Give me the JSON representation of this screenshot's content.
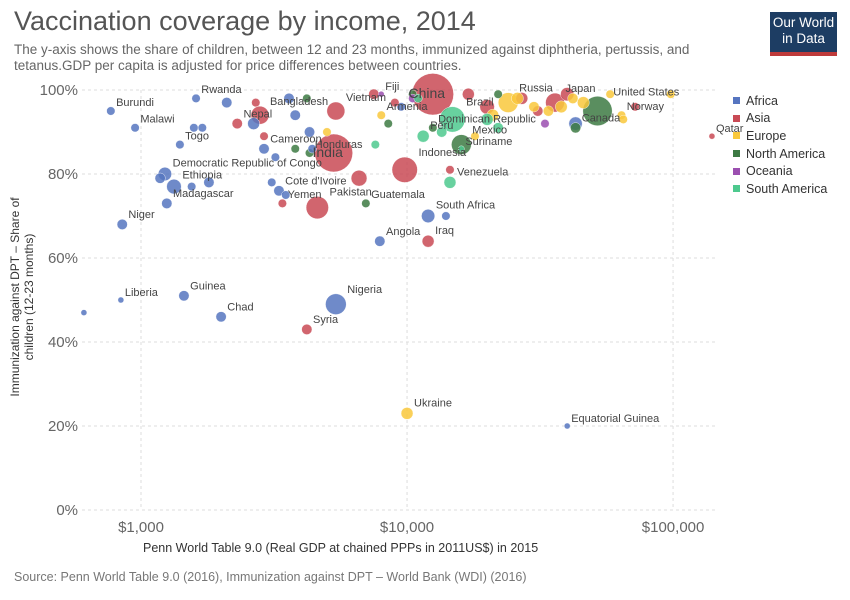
{
  "header": {
    "title": "Vaccination coverage by income, 2014",
    "subtitle": "The y-axis shows the share of children, between 12 and 23 months, immunized against diphtheria, pertussis, and tetanus.GDP per capita is adjusted for price differences between countries.",
    "logo_line1": "Our World",
    "logo_line2": "in Data"
  },
  "footer": {
    "source": "Source: Penn World Table 9.0 (2016), Immunization against DPT – World Bank (WDI) (2016)"
  },
  "colors": {
    "Africa": "#5675c0",
    "Asia": "#c94a55",
    "Europe": "#f9c83c",
    "North America": "#3d7a43",
    "Oceania": "#9b4fb0",
    "South America": "#4dc98e"
  },
  "chart_data": {
    "type": "scatter",
    "title": "Vaccination coverage by income, 2014",
    "xlabel": "Penn World Table 9.0 (Real GDP at chained PPPs in 2011US$) in 2015",
    "ylabel": "Immunization against DPT – Share of children (12-23 months)",
    "x_scale": "log",
    "xlim": [
      600,
      145000
    ],
    "ylim": [
      0,
      100
    ],
    "x_ticks": [
      {
        "value": 1000,
        "label": "$1,000"
      },
      {
        "value": 10000,
        "label": "$10,000"
      },
      {
        "value": 100000,
        "label": "$100,000"
      }
    ],
    "y_ticks": [
      {
        "value": 0,
        "label": "0%"
      },
      {
        "value": 20,
        "label": "20%"
      },
      {
        "value": 40,
        "label": "40%"
      },
      {
        "value": 60,
        "label": "60%"
      },
      {
        "value": 80,
        "label": "80%"
      },
      {
        "value": 100,
        "label": "100%"
      }
    ],
    "grid": true,
    "legend_position": "right",
    "legend": [
      "Africa",
      "Asia",
      "Europe",
      "North America",
      "Oceania",
      "South America"
    ],
    "points": [
      {
        "name": "Burundi",
        "region": "Africa",
        "x": 770,
        "y": 95,
        "size": 2
      },
      {
        "name": "Malawi",
        "region": "Africa",
        "x": 950,
        "y": 91,
        "size": 2
      },
      {
        "name": "Rwanda",
        "region": "Africa",
        "x": 1610,
        "y": 98,
        "size": 2
      },
      {
        "name": "Togo",
        "region": "Africa",
        "x": 1400,
        "y": 87,
        "size": 2
      },
      {
        "name": "Democratic Republic of Congo",
        "region": "Africa",
        "x": 1230,
        "y": 80,
        "size": 5
      },
      {
        "name": "Ethiopia",
        "region": "Africa",
        "x": 1330,
        "y": 77,
        "size": 6
      },
      {
        "name": "Madagascar",
        "region": "Africa",
        "x": 1250,
        "y": 73,
        "size": 3
      },
      {
        "name": "Niger",
        "region": "Africa",
        "x": 850,
        "y": 68,
        "size": 3
      },
      {
        "name": "Liberia",
        "region": "Africa",
        "x": 840,
        "y": 50,
        "size": 1
      },
      {
        "name": "Guinea",
        "region": "Africa",
        "x": 1450,
        "y": 51,
        "size": 3
      },
      {
        "name": "Chad",
        "region": "Africa",
        "x": 2000,
        "y": 46,
        "size": 3
      },
      {
        "name": "Nigeria",
        "region": "Africa",
        "x": 5400,
        "y": 49,
        "size": 12
      },
      {
        "name": "Cameroon",
        "region": "Africa",
        "x": 2900,
        "y": 86,
        "size": 3
      },
      {
        "name": "Cote d'Ivoire",
        "region": "Africa",
        "x": 3300,
        "y": 76,
        "size": 3
      },
      {
        "name": "Angola",
        "region": "Africa",
        "x": 7900,
        "y": 64,
        "size": 3
      },
      {
        "name": "South Africa",
        "region": "Africa",
        "x": 12000,
        "y": 70,
        "size": 5
      },
      {
        "name": "Equatorial Guinea",
        "region": "Africa",
        "x": 40000,
        "y": 20,
        "size": 1
      },
      {
        "name": "Bangladesh",
        "region": "Asia",
        "x": 2800,
        "y": 94,
        "size": 9
      },
      {
        "name": "Nepal",
        "region": "Asia",
        "x": 2300,
        "y": 92,
        "size": 3
      },
      {
        "name": "India",
        "region": "Asia",
        "x": 5300,
        "y": 85,
        "size": 40
      },
      {
        "name": "Pakistan",
        "region": "Asia",
        "x": 4600,
        "y": 72,
        "size": 14
      },
      {
        "name": "Yemen",
        "region": "Asia",
        "x": 3400,
        "y": 73,
        "size": 2
      },
      {
        "name": "Vietnam",
        "region": "Asia",
        "x": 5400,
        "y": 95,
        "size": 9
      },
      {
        "name": "Indonesia",
        "region": "Asia",
        "x": 9800,
        "y": 81,
        "size": 18
      },
      {
        "name": "China",
        "region": "Asia",
        "x": 12500,
        "y": 99,
        "size": 48
      },
      {
        "name": "Iraq",
        "region": "Asia",
        "x": 12000,
        "y": 64,
        "size": 4
      },
      {
        "name": "Syria",
        "region": "Asia",
        "x": 4200,
        "y": 43,
        "size": 3
      },
      {
        "name": "Japan",
        "region": "Asia",
        "x": 36000,
        "y": 97,
        "size": 10
      },
      {
        "name": "Qatar",
        "region": "Asia",
        "x": 140000,
        "y": 89,
        "size": 1
      },
      {
        "name": "Russia",
        "region": "Europe",
        "x": 24000,
        "y": 97,
        "size": 11
      },
      {
        "name": "Ukraine",
        "region": "Europe",
        "x": 10000,
        "y": 23,
        "size": 4
      },
      {
        "name": "Norway",
        "region": "Europe",
        "x": 64000,
        "y": 94,
        "size": 2
      },
      {
        "name": "United States",
        "region": "North America",
        "x": 52000,
        "y": 95,
        "size": 24
      },
      {
        "name": "Canada",
        "region": "North America",
        "x": 43000,
        "y": 91,
        "size": 3
      },
      {
        "name": "Mexico",
        "region": "North America",
        "x": 16000,
        "y": 87,
        "size": 11
      },
      {
        "name": "Guatemala",
        "region": "North America",
        "x": 7000,
        "y": 73,
        "size": 2
      },
      {
        "name": "Honduras",
        "region": "North America",
        "x": 4300,
        "y": 85,
        "size": 2
      },
      {
        "name": "Dominican Republic",
        "region": "North America",
        "x": 12500,
        "y": 91,
        "size": 2
      },
      {
        "name": "Fiji",
        "region": "Oceania",
        "x": 8000,
        "y": 99,
        "size": 1
      },
      {
        "name": "Armenia",
        "region": "Europe",
        "x": 8000,
        "y": 94,
        "size": 2
      },
      {
        "name": "Peru",
        "region": "South America",
        "x": 11500,
        "y": 89,
        "size": 4
      },
      {
        "name": "Suriname",
        "region": "South America",
        "x": 16000,
        "y": 86,
        "size": 1
      },
      {
        "name": "Venezuela",
        "region": "South America",
        "x": 14500,
        "y": 78,
        "size": 4
      },
      {
        "name": "Brazil",
        "region": "South America",
        "x": 14800,
        "y": 93,
        "size": 18
      },
      {
        "region": "Africa",
        "x": 610,
        "y": 47,
        "size": 1
      },
      {
        "region": "Africa",
        "x": 1180,
        "y": 79,
        "size": 3
      },
      {
        "region": "Africa",
        "x": 1550,
        "y": 77,
        "size": 2
      },
      {
        "region": "Africa",
        "x": 1580,
        "y": 91,
        "size": 2
      },
      {
        "region": "Africa",
        "x": 1700,
        "y": 91,
        "size": 2
      },
      {
        "region": "Africa",
        "x": 1800,
        "y": 78,
        "size": 3
      },
      {
        "region": "Africa",
        "x": 2100,
        "y": 97,
        "size": 3
      },
      {
        "region": "Africa",
        "x": 2650,
        "y": 92,
        "size": 4
      },
      {
        "region": "Africa",
        "x": 3600,
        "y": 98,
        "size": 3
      },
      {
        "region": "Africa",
        "x": 3800,
        "y": 94,
        "size": 3
      },
      {
        "region": "Africa",
        "x": 4300,
        "y": 90,
        "size": 3
      },
      {
        "region": "Africa",
        "x": 4400,
        "y": 86,
        "size": 2
      },
      {
        "region": "Africa",
        "x": 3200,
        "y": 84,
        "size": 2
      },
      {
        "region": "Africa",
        "x": 3100,
        "y": 78,
        "size": 2
      },
      {
        "region": "Africa",
        "x": 3500,
        "y": 75,
        "size": 2
      },
      {
        "region": "Africa",
        "x": 9500,
        "y": 96,
        "size": 2
      },
      {
        "region": "Africa",
        "x": 14000,
        "y": 70,
        "size": 2
      },
      {
        "region": "Africa",
        "x": 43000,
        "y": 92,
        "size": 5
      },
      {
        "region": "Asia",
        "x": 2700,
        "y": 97,
        "size": 2
      },
      {
        "region": "Asia",
        "x": 2900,
        "y": 89,
        "size": 2
      },
      {
        "region": "Asia",
        "x": 6600,
        "y": 79,
        "size": 7
      },
      {
        "region": "Asia",
        "x": 20000,
        "y": 96,
        "size": 6
      },
      {
        "region": "Asia",
        "x": 17000,
        "y": 99,
        "size": 4
      },
      {
        "region": "Asia",
        "x": 27000,
        "y": 98,
        "size": 4
      },
      {
        "region": "Asia",
        "x": 31000,
        "y": 95,
        "size": 3
      },
      {
        "region": "Asia",
        "x": 40000,
        "y": 99,
        "size": 5
      },
      {
        "region": "Asia",
        "x": 72000,
        "y": 96,
        "size": 2
      },
      {
        "region": "Asia",
        "x": 7500,
        "y": 99,
        "size": 3
      },
      {
        "region": "Asia",
        "x": 9000,
        "y": 97,
        "size": 2
      },
      {
        "region": "Asia",
        "x": 14500,
        "y": 81,
        "size": 2
      },
      {
        "region": "Europe",
        "x": 21000,
        "y": 94,
        "size": 4
      },
      {
        "region": "Europe",
        "x": 26000,
        "y": 98,
        "size": 4
      },
      {
        "region": "Europe",
        "x": 30000,
        "y": 96,
        "size": 3
      },
      {
        "region": "Europe",
        "x": 34000,
        "y": 95,
        "size": 3
      },
      {
        "region": "Europe",
        "x": 38000,
        "y": 96,
        "size": 4
      },
      {
        "region": "Europe",
        "x": 42000,
        "y": 98,
        "size": 3
      },
      {
        "region": "Europe",
        "x": 46000,
        "y": 97,
        "size": 4
      },
      {
        "region": "Europe",
        "x": 58000,
        "y": 99,
        "size": 2
      },
      {
        "region": "Europe",
        "x": 65000,
        "y": 93,
        "size": 2
      },
      {
        "region": "Europe",
        "x": 98000,
        "y": 99,
        "size": 2
      },
      {
        "region": "Europe",
        "x": 5000,
        "y": 90,
        "size": 2
      },
      {
        "region": "Europe",
        "x": 18000,
        "y": 89,
        "size": 2
      },
      {
        "region": "North America",
        "x": 3800,
        "y": 86,
        "size": 2
      },
      {
        "region": "North America",
        "x": 8500,
        "y": 92,
        "size": 2
      },
      {
        "region": "North America",
        "x": 22000,
        "y": 99,
        "size": 2
      },
      {
        "region": "North America",
        "x": 10500,
        "y": 99,
        "size": 2
      },
      {
        "region": "North America",
        "x": 4200,
        "y": 98,
        "size": 2
      },
      {
        "region": "Oceania",
        "x": 33000,
        "y": 92,
        "size": 2
      },
      {
        "region": "Oceania",
        "x": 10500,
        "y": 98,
        "size": 2
      },
      {
        "region": "South America",
        "x": 7600,
        "y": 87,
        "size": 2
      },
      {
        "region": "South America",
        "x": 13500,
        "y": 90,
        "size": 3
      },
      {
        "region": "South America",
        "x": 20000,
        "y": 93,
        "size": 4
      },
      {
        "region": "South America",
        "x": 22000,
        "y": 91,
        "size": 3
      },
      {
        "region": "South America",
        "x": 11000,
        "y": 98,
        "size": 2
      }
    ]
  }
}
